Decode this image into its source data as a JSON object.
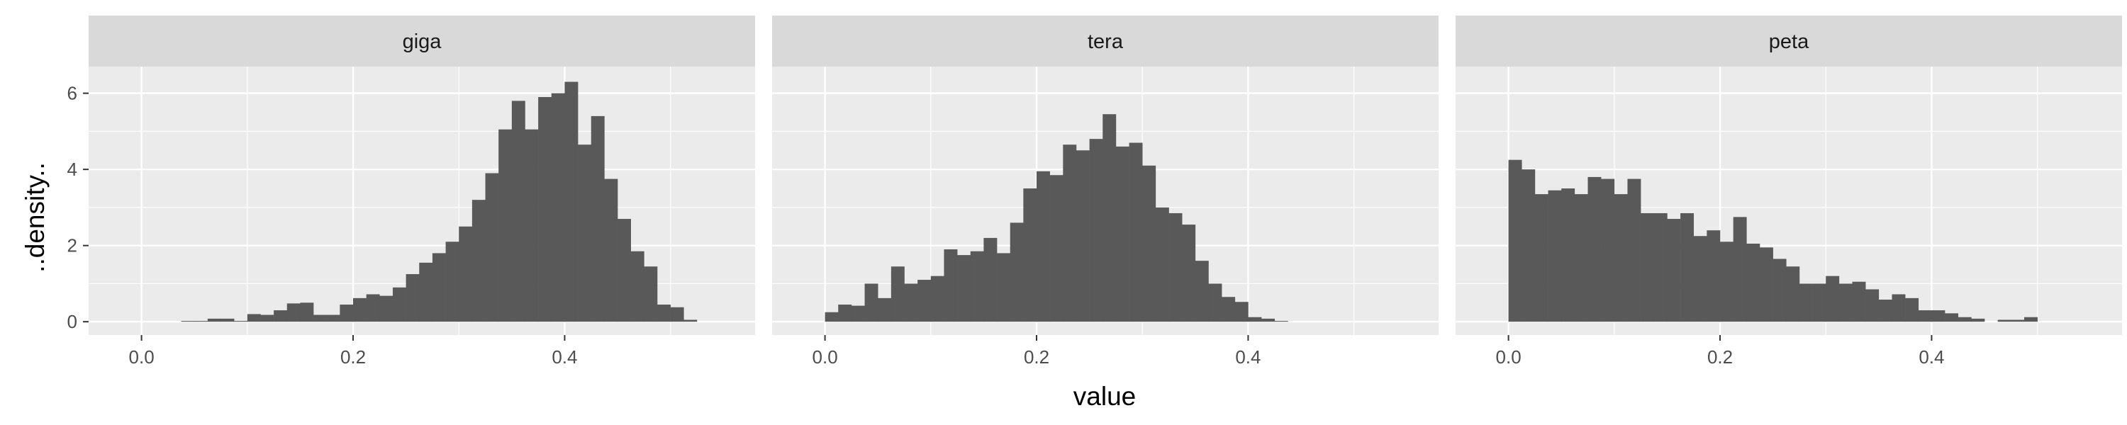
{
  "chart_data": {
    "type": "bar",
    "subtype": "faceted-histogram",
    "xlabel": "value",
    "ylabel": "..density..",
    "xlim": [
      -0.05,
      0.58
    ],
    "ylim": [
      -0.35,
      6.7
    ],
    "x_ticks": [
      0.0,
      0.2,
      0.4
    ],
    "x_tick_labels": [
      "0.0",
      "0.2",
      "0.4"
    ],
    "y_ticks": [
      0,
      2,
      4,
      6
    ],
    "y_tick_labels": [
      "0",
      "2",
      "4",
      "6"
    ],
    "bin_width": 0.0125,
    "grid": true,
    "facets": [
      {
        "label": "giga",
        "bin_start": 0.0375,
        "values": [
          0.02,
          0.02,
          0.08,
          0.08,
          0.02,
          0.2,
          0.18,
          0.3,
          0.48,
          0.5,
          0.18,
          0.18,
          0.45,
          0.62,
          0.72,
          0.68,
          0.9,
          1.25,
          1.55,
          1.8,
          2.1,
          2.5,
          3.2,
          3.9,
          5.05,
          5.8,
          5.05,
          5.9,
          6.0,
          6.3,
          4.65,
          5.4,
          3.75,
          2.7,
          1.85,
          1.45,
          0.45,
          0.38,
          0.05
        ]
      },
      {
        "label": "tera",
        "bin_start": 0.0,
        "values": [
          0.25,
          0.45,
          0.42,
          1.0,
          0.62,
          1.45,
          1.0,
          1.1,
          1.2,
          1.9,
          1.75,
          1.85,
          2.2,
          1.8,
          2.6,
          3.5,
          3.95,
          3.85,
          4.65,
          4.5,
          4.8,
          5.45,
          4.6,
          4.7,
          4.1,
          3.0,
          2.85,
          2.55,
          1.6,
          1.0,
          0.65,
          0.52,
          0.12,
          0.08,
          0.02
        ]
      },
      {
        "label": "peta",
        "bin_start": 0.0,
        "values": [
          4.25,
          4.0,
          3.35,
          3.45,
          3.5,
          3.35,
          3.8,
          3.75,
          3.35,
          3.75,
          2.85,
          2.85,
          2.7,
          2.85,
          2.25,
          2.4,
          2.1,
          2.75,
          2.05,
          1.95,
          1.65,
          1.45,
          1.0,
          1.0,
          1.2,
          1.0,
          1.05,
          0.85,
          0.58,
          0.72,
          0.62,
          0.3,
          0.3,
          0.22,
          0.12,
          0.08,
          0.0,
          0.05,
          0.05,
          0.12
        ]
      }
    ]
  }
}
